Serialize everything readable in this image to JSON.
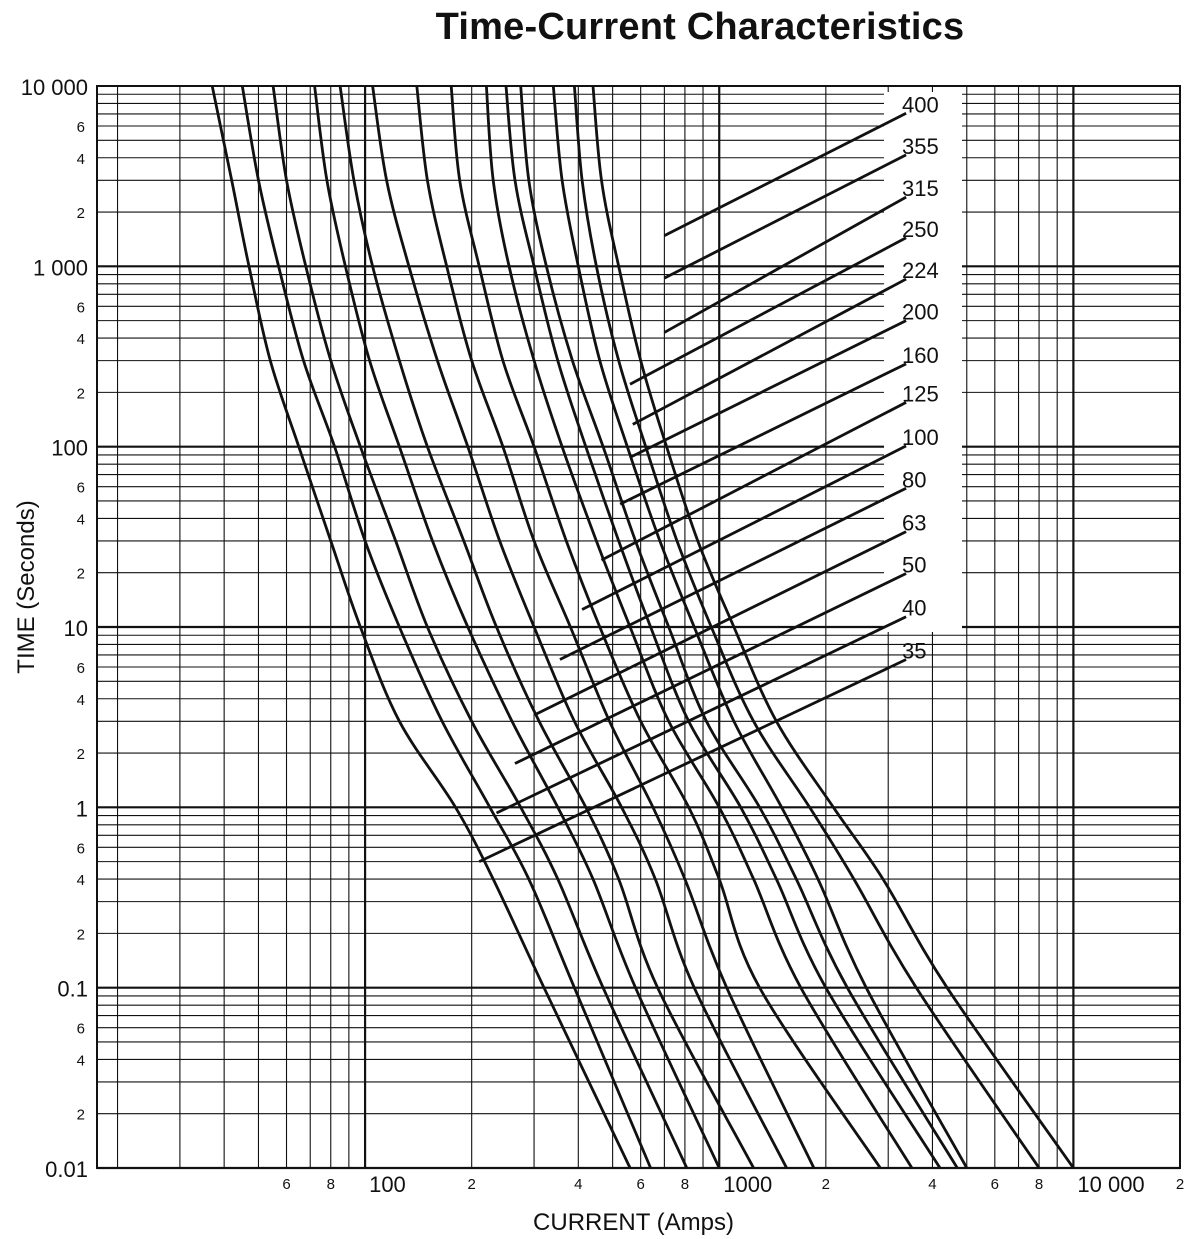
{
  "chart_data": {
    "type": "line",
    "title": "Time-Current Characteristics",
    "xlabel": "CURRENT (Amps)",
    "ylabel": "TIME (Seconds)",
    "x_scale": "log",
    "y_scale": "log",
    "xlim": [
      17.5,
      20000
    ],
    "ylim": [
      0.01,
      10000
    ],
    "grid": true,
    "legend": "none (curve ratings labeled at upper right)",
    "x_major_tick_labels": [
      {
        "value": 100,
        "label": "100"
      },
      {
        "value": 1000,
        "label": "1000"
      },
      {
        "value": 10000,
        "label": "10 000"
      }
    ],
    "x_minor_tick_labels": [
      {
        "value": 60,
        "label": "6"
      },
      {
        "value": 80,
        "label": "8"
      },
      {
        "value": 200,
        "label": "2"
      },
      {
        "value": 400,
        "label": "4"
      },
      {
        "value": 600,
        "label": "6"
      },
      {
        "value": 800,
        "label": "8"
      },
      {
        "value": 2000,
        "label": "2"
      },
      {
        "value": 4000,
        "label": "4"
      },
      {
        "value": 6000,
        "label": "6"
      },
      {
        "value": 8000,
        "label": "8"
      },
      {
        "value": 20000,
        "label": "2"
      }
    ],
    "y_major_tick_labels": [
      {
        "value": 10000,
        "label": "10 000"
      },
      {
        "value": 1000,
        "label": "1 000"
      },
      {
        "value": 100,
        "label": "100"
      },
      {
        "value": 10,
        "label": "10"
      },
      {
        "value": 1,
        "label": "1"
      },
      {
        "value": 0.1,
        "label": "0.1"
      },
      {
        "value": 0.01,
        "label": "0.01"
      }
    ],
    "y_minor_digits": [
      "2",
      "4",
      "6"
    ],
    "series": [
      {
        "name": "35",
        "points": [
          [
            37,
            10000
          ],
          [
            42,
            3000
          ],
          [
            47,
            1000
          ],
          [
            54,
            300
          ],
          [
            65,
            100
          ],
          [
            80,
            30
          ],
          [
            97,
            10
          ],
          [
            125,
            3
          ],
          [
            180,
            1
          ],
          [
            230,
            0.4
          ],
          [
            320,
            0.1
          ],
          [
            560,
            0.01
          ]
        ]
      },
      {
        "name": "40",
        "points": [
          [
            45,
            10000
          ],
          [
            50,
            3000
          ],
          [
            57,
            1000
          ],
          [
            67,
            300
          ],
          [
            82,
            100
          ],
          [
            100,
            30
          ],
          [
            125,
            10
          ],
          [
            165,
            3
          ],
          [
            225,
            1
          ],
          [
            290,
            0.4
          ],
          [
            390,
            0.1
          ],
          [
            640,
            0.01
          ]
        ]
      },
      {
        "name": "50",
        "points": [
          [
            55,
            10000
          ],
          [
            60,
            3000
          ],
          [
            68,
            1000
          ],
          [
            80,
            300
          ],
          [
            97,
            100
          ],
          [
            122,
            30
          ],
          [
            150,
            10
          ],
          [
            200,
            3
          ],
          [
            275,
            1
          ],
          [
            350,
            0.4
          ],
          [
            470,
            0.1
          ],
          [
            810,
            0.01
          ]
        ]
      },
      {
        "name": "63",
        "points": [
          [
            72,
            10000
          ],
          [
            78,
            3000
          ],
          [
            88,
            1000
          ],
          [
            103,
            300
          ],
          [
            125,
            100
          ],
          [
            155,
            30
          ],
          [
            195,
            10
          ],
          [
            260,
            3
          ],
          [
            350,
            1
          ],
          [
            440,
            0.4
          ],
          [
            580,
            0.1
          ],
          [
            1000,
            0.01
          ]
        ]
      },
      {
        "name": "80",
        "points": [
          [
            85,
            10000
          ],
          [
            93,
            3000
          ],
          [
            105,
            1000
          ],
          [
            125,
            300
          ],
          [
            150,
            100
          ],
          [
            190,
            30
          ],
          [
            235,
            10
          ],
          [
            310,
            3
          ],
          [
            420,
            1
          ],
          [
            520,
            0.4
          ],
          [
            670,
            0.1
          ],
          [
            1250,
            0.01
          ]
        ]
      },
      {
        "name": "100",
        "points": [
          [
            105,
            10000
          ],
          [
            115,
            3000
          ],
          [
            133,
            1000
          ],
          [
            160,
            300
          ],
          [
            195,
            100
          ],
          [
            240,
            30
          ],
          [
            300,
            10
          ],
          [
            390,
            3
          ],
          [
            530,
            1
          ],
          [
            660,
            0.4
          ],
          [
            850,
            0.1
          ],
          [
            1550,
            0.01
          ]
        ]
      },
      {
        "name": "125",
        "points": [
          [
            140,
            10000
          ],
          [
            150,
            3000
          ],
          [
            170,
            1000
          ],
          [
            200,
            300
          ],
          [
            245,
            100
          ],
          [
            300,
            30
          ],
          [
            380,
            10
          ],
          [
            490,
            3
          ],
          [
            650,
            1
          ],
          [
            800,
            0.4
          ],
          [
            1050,
            0.1
          ],
          [
            1850,
            0.01
          ]
        ]
      },
      {
        "name": "160",
        "points": [
          [
            175,
            10000
          ],
          [
            185,
            3000
          ],
          [
            210,
            1000
          ],
          [
            245,
            300
          ],
          [
            300,
            100
          ],
          [
            370,
            30
          ],
          [
            460,
            10
          ],
          [
            600,
            3
          ],
          [
            820,
            1
          ],
          [
            1000,
            0.4
          ],
          [
            1300,
            0.1
          ],
          [
            2850,
            0.01
          ]
        ]
      },
      {
        "name": "200",
        "points": [
          [
            220,
            10000
          ],
          [
            230,
            3000
          ],
          [
            255,
            1000
          ],
          [
            300,
            300
          ],
          [
            360,
            100
          ],
          [
            450,
            30
          ],
          [
            560,
            10
          ],
          [
            720,
            3
          ],
          [
            1000,
            1
          ],
          [
            1250,
            0.4
          ],
          [
            1700,
            0.1
          ],
          [
            3500,
            0.01
          ]
        ]
      },
      {
        "name": "224",
        "points": [
          [
            250,
            10000
          ],
          [
            265,
            3000
          ],
          [
            300,
            1000
          ],
          [
            350,
            300
          ],
          [
            420,
            100
          ],
          [
            520,
            30
          ],
          [
            640,
            10
          ],
          [
            820,
            3
          ],
          [
            1150,
            1
          ],
          [
            1450,
            0.4
          ],
          [
            2000,
            0.1
          ],
          [
            4200,
            0.01
          ]
        ]
      },
      {
        "name": "250",
        "points": [
          [
            275,
            10000
          ],
          [
            290,
            3000
          ],
          [
            325,
            1000
          ],
          [
            385,
            300
          ],
          [
            470,
            100
          ],
          [
            580,
            30
          ],
          [
            720,
            10
          ],
          [
            920,
            3
          ],
          [
            1300,
            1
          ],
          [
            1650,
            0.4
          ],
          [
            2300,
            0.1
          ],
          [
            4700,
            0.01
          ]
        ]
      },
      {
        "name": "315",
        "points": [
          [
            340,
            10000
          ],
          [
            360,
            3000
          ],
          [
            400,
            1000
          ],
          [
            460,
            300
          ],
          [
            550,
            100
          ],
          [
            680,
            30
          ],
          [
            850,
            10
          ],
          [
            1100,
            3
          ],
          [
            1500,
            1
          ],
          [
            1900,
            0.4
          ],
          [
            2600,
            0.1
          ],
          [
            5000,
            0.01
          ]
        ]
      },
      {
        "name": "355",
        "points": [
          [
            390,
            10000
          ],
          [
            410,
            3000
          ],
          [
            450,
            1000
          ],
          [
            520,
            300
          ],
          [
            620,
            100
          ],
          [
            760,
            30
          ],
          [
            950,
            10
          ],
          [
            1250,
            3
          ],
          [
            1800,
            1
          ],
          [
            2400,
            0.4
          ],
          [
            3600,
            0.1
          ],
          [
            8000,
            0.01
          ]
        ]
      },
      {
        "name": "400",
        "points": [
          [
            440,
            10000
          ],
          [
            465,
            3000
          ],
          [
            520,
            1000
          ],
          [
            600,
            300
          ],
          [
            710,
            100
          ],
          [
            870,
            30
          ],
          [
            1100,
            10
          ],
          [
            1450,
            3
          ],
          [
            2100,
            1
          ],
          [
            2900,
            0.4
          ],
          [
            4400,
            0.1
          ],
          [
            10000,
            0.01
          ]
        ]
      }
    ],
    "label_leaders": [
      {
        "label": "400",
        "from": [
          700,
          1480
        ],
        "to": [
          3370,
          7060
        ]
      },
      {
        "label": "355",
        "from": [
          700,
          860
        ],
        "to": [
          3370,
          4150
        ]
      },
      {
        "label": "315",
        "from": [
          700,
          430
        ],
        "to": [
          3370,
          2420
        ]
      },
      {
        "label": "250",
        "from": [
          560,
          222
        ],
        "to": [
          3370,
          1440
        ]
      },
      {
        "label": "224",
        "from": [
          570,
          133
        ],
        "to": [
          3370,
          850
        ]
      },
      {
        "label": "200",
        "from": [
          565,
          88
        ],
        "to": [
          3370,
          500
        ]
      },
      {
        "label": "160",
        "from": [
          525,
          48
        ],
        "to": [
          3370,
          288
        ]
      },
      {
        "label": "125",
        "from": [
          465,
          23.5
        ],
        "to": [
          3370,
          176
        ]
      },
      {
        "label": "100",
        "from": [
          410,
          12.5
        ],
        "to": [
          3370,
          101
        ]
      },
      {
        "label": "80",
        "from": [
          355,
          6.6
        ],
        "to": [
          3370,
          58.8
        ]
      },
      {
        "label": "63",
        "from": [
          305,
          3.3
        ],
        "to": [
          3370,
          33.8
        ]
      },
      {
        "label": "50",
        "from": [
          265,
          1.75
        ],
        "to": [
          3370,
          19.8
        ]
      },
      {
        "label": "40",
        "from": [
          235,
          0.93
        ],
        "to": [
          3370,
          11.4
        ]
      },
      {
        "label": "35",
        "from": [
          210,
          0.5
        ],
        "to": [
          3370,
          6.6
        ]
      }
    ]
  }
}
